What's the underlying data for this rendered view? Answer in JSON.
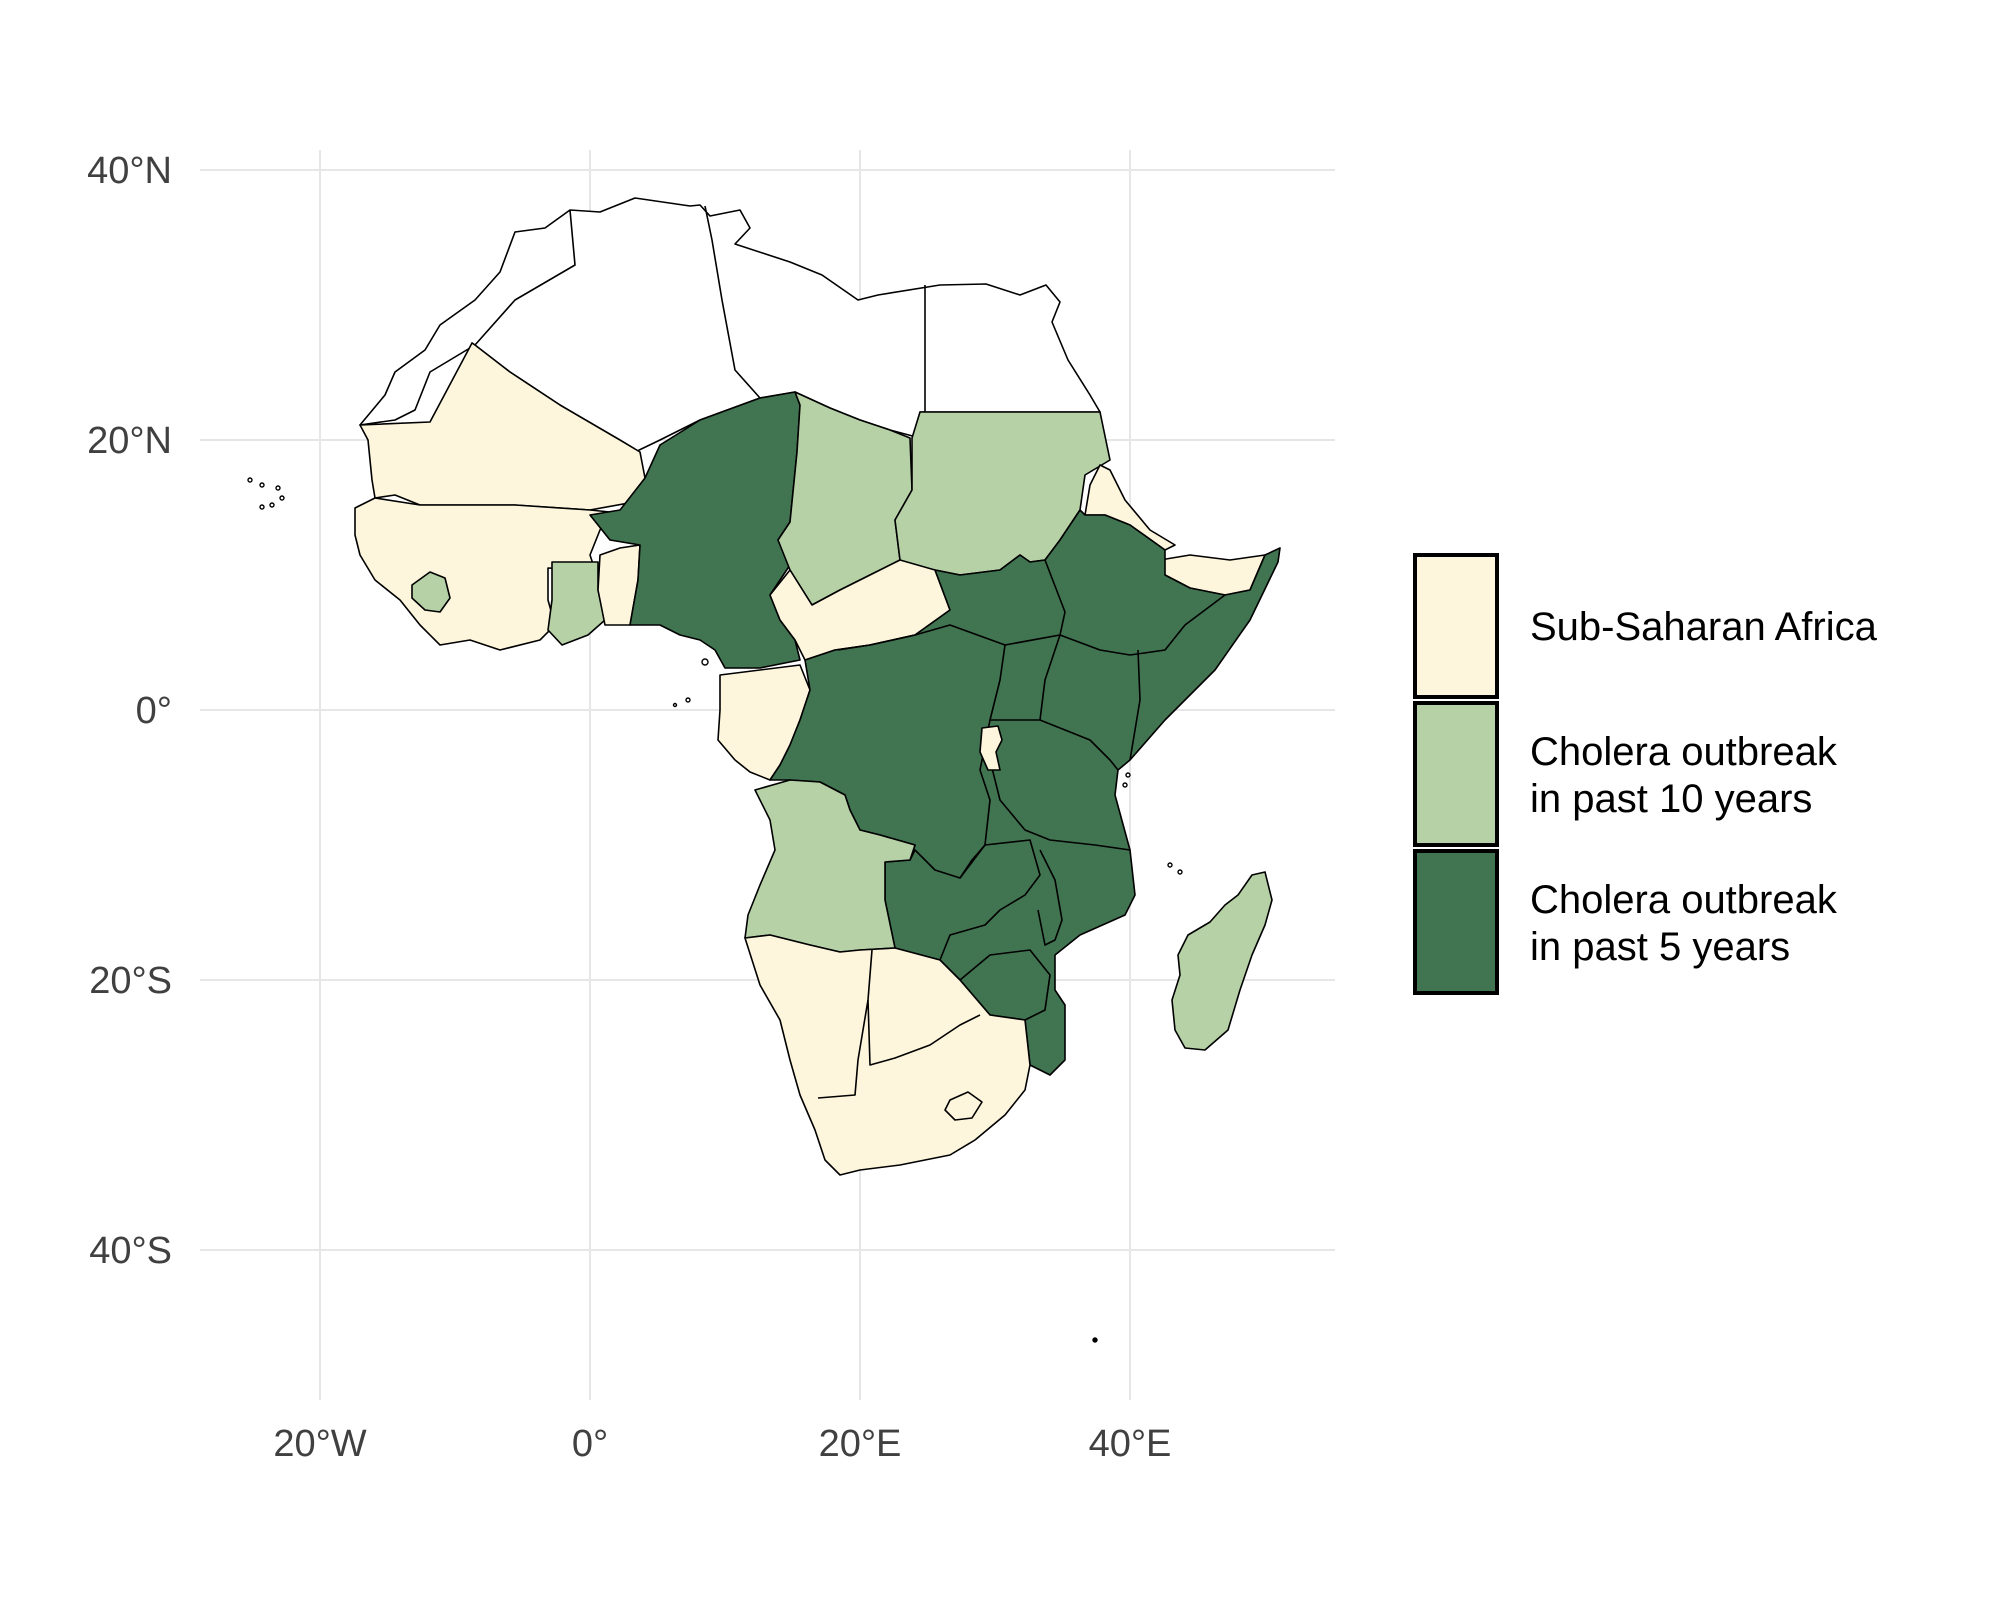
{
  "map": {
    "x_ticks": [
      "20°W",
      "0°",
      "20°E",
      "40°E"
    ],
    "y_ticks": [
      "40°N",
      "20°N",
      "0°",
      "20°S",
      "40°S"
    ],
    "x_tick_values": [
      -20,
      0,
      20,
      40
    ],
    "y_tick_values": [
      40,
      20,
      0,
      -20,
      -40
    ],
    "lon_range": [
      -29.5,
      55
    ],
    "lat_range": [
      -51,
      41
    ],
    "grid": true,
    "colors": {
      "sub_saharan": "#fdf5dc",
      "outbreak_10yr": "#b7d1a7",
      "outbreak_5yr": "#417450",
      "north_africa": "#ffffff"
    },
    "regions": [
      {
        "name": "North Africa",
        "category": "none",
        "fill": "north_africa"
      },
      {
        "name": "Mauritania",
        "category": "sub_saharan",
        "fill": "sub_saharan"
      },
      {
        "name": "West Africa (Mali, Senegal, Guinea, Côte d'Ivoire, Burkina Faso)",
        "category": "sub_saharan",
        "fill": "sub_saharan"
      },
      {
        "name": "Sierra Leone",
        "category": "outbreak_10yr",
        "fill": "outbreak_10yr"
      },
      {
        "name": "Ghana",
        "category": "outbreak_10yr",
        "fill": "outbreak_10yr"
      },
      {
        "name": "Togo / Benin",
        "category": "sub_saharan",
        "fill": "sub_saharan"
      },
      {
        "name": "Niger / Nigeria / Cameroon",
        "category": "outbreak_5yr",
        "fill": "outbreak_5yr"
      },
      {
        "name": "Chad",
        "category": "outbreak_10yr",
        "fill": "outbreak_10yr"
      },
      {
        "name": "Sudan",
        "category": "outbreak_10yr",
        "fill": "outbreak_10yr"
      },
      {
        "name": "Eritrea",
        "category": "sub_saharan",
        "fill": "sub_saharan"
      },
      {
        "name": "Djibouti / Somaliland",
        "category": "sub_saharan",
        "fill": "sub_saharan"
      },
      {
        "name": "Central African Republic",
        "category": "sub_saharan",
        "fill": "sub_saharan"
      },
      {
        "name": "Gabon / Congo",
        "category": "sub_saharan",
        "fill": "sub_saharan"
      },
      {
        "name": "East & Central Africa (Ethiopia, Somalia, South Sudan, DRC, Uganda, Kenya, Tanzania, Zambia, Malawi, Mozambique, Zimbabwe)",
        "category": "outbreak_5yr",
        "fill": "outbreak_5yr"
      },
      {
        "name": "Rwanda / Burundi",
        "category": "sub_saharan",
        "fill": "sub_saharan"
      },
      {
        "name": "Angola",
        "category": "outbreak_10yr",
        "fill": "outbreak_10yr"
      },
      {
        "name": "Southern Africa (Namibia, Botswana, South Africa)",
        "category": "sub_saharan",
        "fill": "sub_saharan"
      },
      {
        "name": "Madagascar",
        "category": "outbreak_10yr",
        "fill": "outbreak_10yr"
      }
    ]
  },
  "legend": {
    "items": [
      {
        "key": "sub_saharan",
        "line1": "Sub-Saharan Africa",
        "line2": ""
      },
      {
        "key": "outbreak_10yr",
        "line1": "Cholera outbreak",
        "line2": "in past 10 years"
      },
      {
        "key": "outbreak_5yr",
        "line1": "Cholera outbreak",
        "line2": "in past 5 years"
      }
    ]
  }
}
